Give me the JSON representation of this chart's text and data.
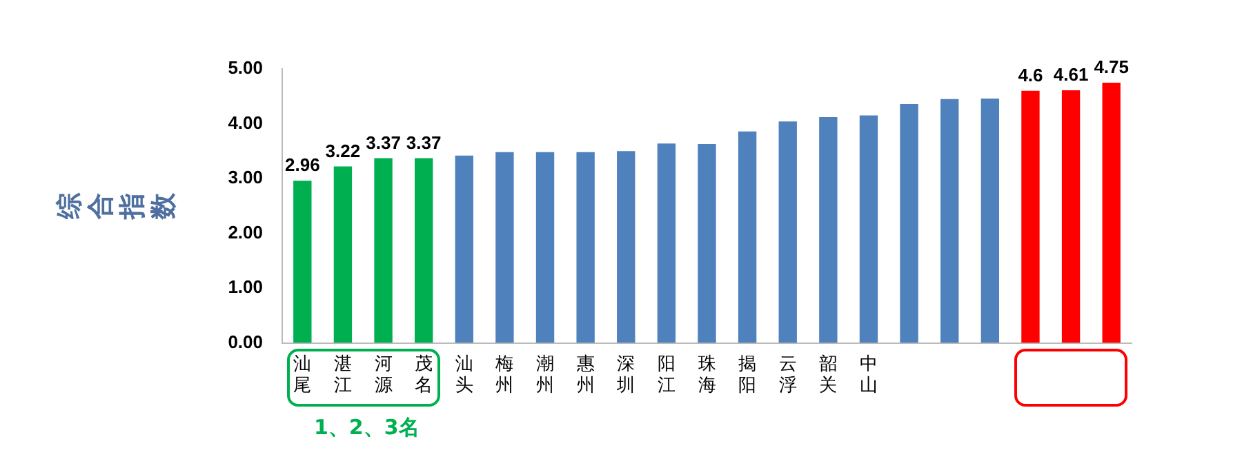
{
  "chart_data": {
    "type": "bar",
    "ylabel": "综合指数",
    "categories": [
      "汕尾",
      "湛江",
      "河源",
      "茂名",
      "汕头",
      "梅州",
      "潮州",
      "惠州",
      "深圳",
      "阳江",
      "珠海",
      "揭阳",
      "云浮",
      "韶关",
      "中山",
      null,
      null,
      null,
      null,
      null,
      null
    ],
    "values": [
      2.96,
      3.22,
      3.37,
      3.37,
      3.42,
      3.48,
      3.48,
      3.48,
      3.5,
      3.64,
      3.63,
      3.86,
      4.04,
      4.12,
      4.15,
      4.36,
      4.45,
      4.46,
      4.6,
      4.61,
      4.75
    ],
    "colors": [
      "#00b050",
      "#00b050",
      "#00b050",
      "#00b050",
      "#4f81bd",
      "#4f81bd",
      "#4f81bd",
      "#4f81bd",
      "#4f81bd",
      "#4f81bd",
      "#4f81bd",
      "#4f81bd",
      "#4f81bd",
      "#4f81bd",
      "#4f81bd",
      "#4f81bd",
      "#4f81bd",
      "#4f81bd",
      "#ff0000",
      "#ff0000",
      "#ff0000"
    ],
    "value_labels": [
      "2.96",
      "3.22",
      "3.37",
      "3.37",
      null,
      null,
      null,
      null,
      null,
      null,
      null,
      null,
      null,
      null,
      null,
      null,
      null,
      null,
      "4.6",
      "4.61",
      "4.75"
    ],
    "ylim": [
      0,
      5
    ],
    "yticks": [
      {
        "value": 0,
        "label": "0.00"
      },
      {
        "value": 1,
        "label": "1.00"
      },
      {
        "value": 2,
        "label": "2.00"
      },
      {
        "value": 3,
        "label": "3.00"
      },
      {
        "value": 4,
        "label": "4.00"
      },
      {
        "value": 5,
        "label": "5.00"
      }
    ],
    "grid": false,
    "legend": false,
    "annotations": [
      "1、2、3名"
    ]
  }
}
